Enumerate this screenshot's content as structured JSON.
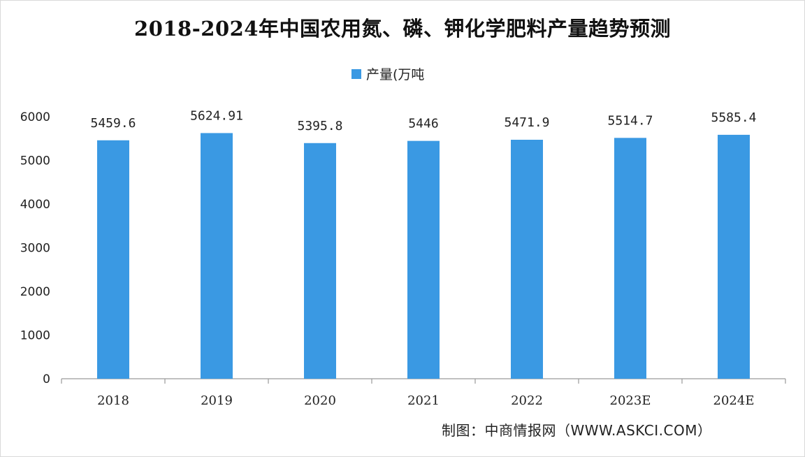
{
  "chart_data": {
    "type": "bar",
    "title": "2018-2024年中国农用氮、磷、钾化学肥料产量趋势预测",
    "categories": [
      "2018",
      "2019",
      "2020",
      "2021",
      "2022",
      "2023E",
      "2024E"
    ],
    "series": [
      {
        "name": "产量(万吨",
        "values": [
          5459.6,
          5624.91,
          5395.8,
          5446,
          5471.9,
          5514.7,
          5585.4
        ]
      }
    ],
    "value_labels": [
      "5459.6",
      "5624.91",
      "5395.8",
      "5446",
      "5471.9",
      "5514.7",
      "5585.4"
    ],
    "y_ticks": [
      "0",
      "1000",
      "2000",
      "3000",
      "4000",
      "5000",
      "6000"
    ],
    "ylim": [
      0,
      6000
    ],
    "xlabel": "",
    "ylabel": "",
    "grid": false,
    "legend_position": "top-center",
    "bar_color": "#3a99e3"
  },
  "source_note": "制图：中商情报网（WWW.ASKCI.COM）"
}
